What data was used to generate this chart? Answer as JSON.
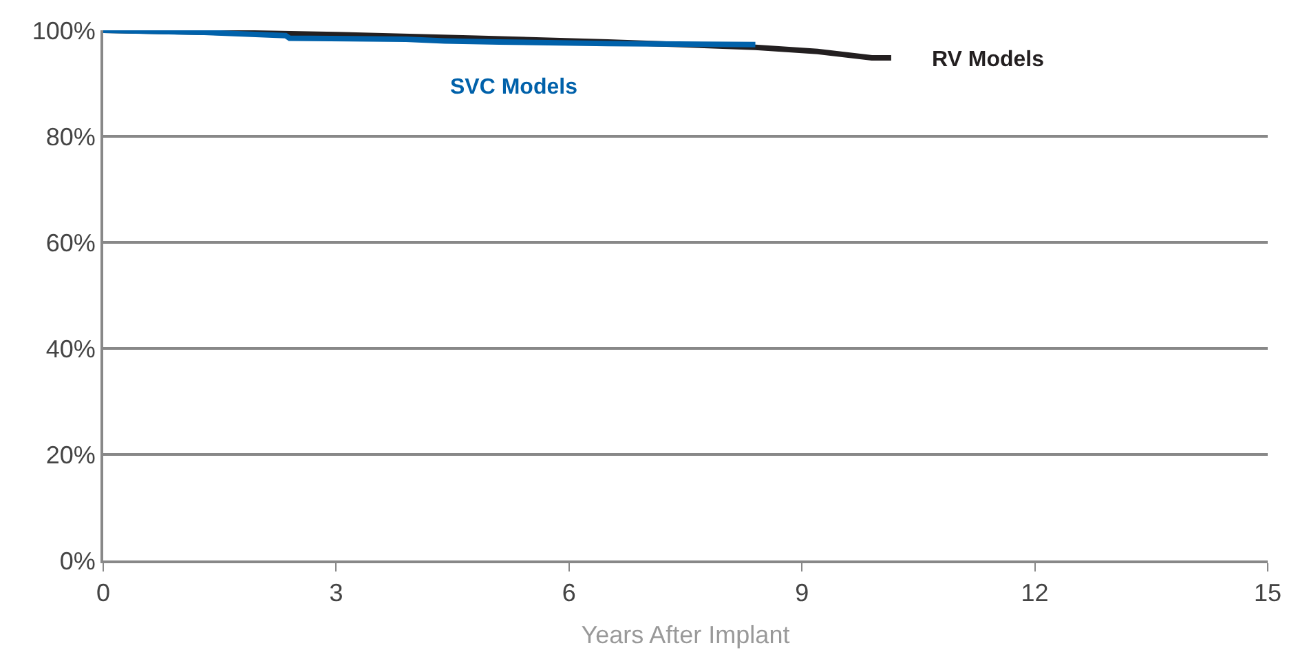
{
  "chart_data": {
    "type": "line",
    "xlabel": "Years After Implant",
    "xlim": [
      0,
      15
    ],
    "xticks": [
      0,
      3,
      6,
      9,
      12,
      15
    ],
    "ylim": [
      0,
      100
    ],
    "yticks": [
      {
        "value": 0,
        "label": "0%"
      },
      {
        "value": 20,
        "label": "20%"
      },
      {
        "value": 40,
        "label": "40%"
      },
      {
        "value": 60,
        "label": "60%"
      },
      {
        "value": 80,
        "label": "80%"
      },
      {
        "value": 100,
        "label": "100%"
      }
    ],
    "grid": "y",
    "legend": false,
    "marker": "none",
    "line_style": "solid",
    "series": [
      {
        "name": "RV Models",
        "color": "#231f20",
        "x": [
          0,
          3.0,
          4.8,
          6.5,
          8.4,
          9.2,
          9.9,
          10.15
        ],
        "values": [
          100,
          99.2,
          98.5,
          97.8,
          96.8,
          96.0,
          94.8,
          94.8
        ]
      },
      {
        "name": "SVC Models",
        "color": "#0061aa",
        "x": [
          0,
          1.3,
          2.35,
          2.4,
          3.9,
          4.4,
          5.1,
          6.5,
          8.4
        ],
        "values": [
          100,
          99.6,
          99.0,
          98.5,
          98.3,
          98.0,
          97.8,
          97.5,
          97.3
        ]
      }
    ]
  }
}
